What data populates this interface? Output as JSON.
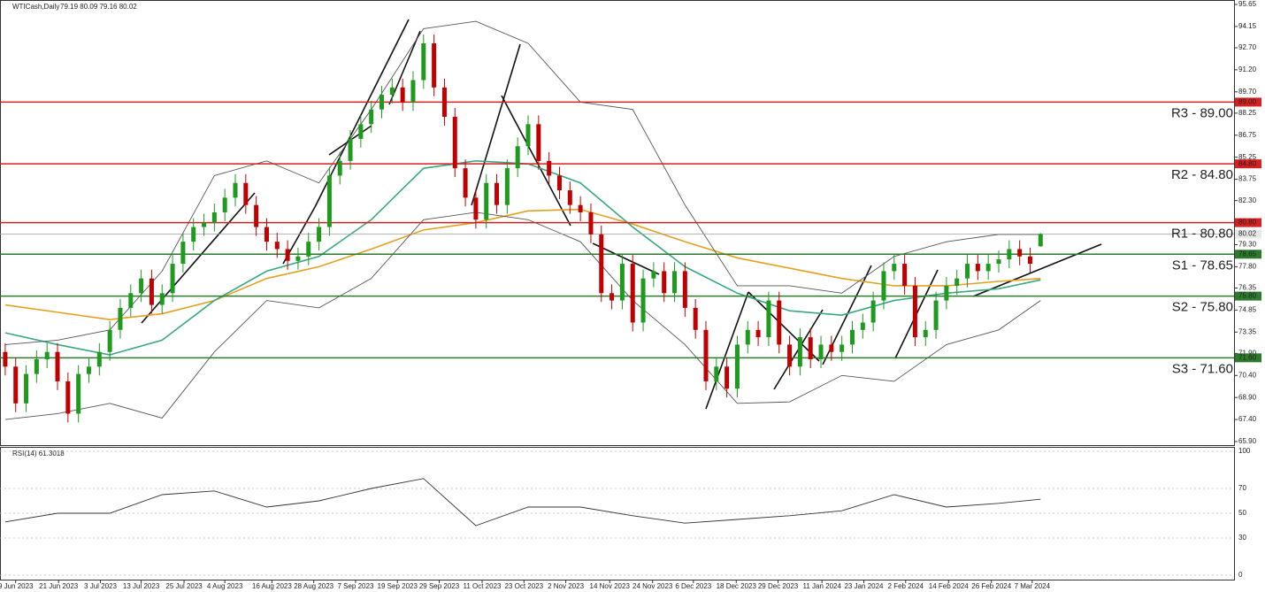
{
  "chart_data": [
    {
      "type": "candlestick",
      "title": "WTICash,Daily",
      "ohlc_label": "79.19 80.09 79.16 80.02",
      "up_color": "#1e9a1e",
      "down_color": "#c00000",
      "open": [
        72.0,
        71.0,
        68.5,
        70.5,
        71.5,
        72.0,
        70.0,
        67.8,
        70.5,
        71.0,
        72.0,
        73.5,
        75.0,
        76.0,
        77.0,
        75.2,
        76.0,
        78.0,
        79.5,
        80.5,
        80.8,
        81.5,
        82.5,
        83.5,
        82.0,
        80.5,
        79.5,
        79.0,
        78.2,
        78.5,
        79.5,
        80.5,
        84.0,
        85.0,
        86.5,
        87.5,
        88.5,
        89.5,
        90.0,
        89.0,
        90.5,
        93.0,
        90.0,
        88.0,
        84.5,
        82.5,
        81.0,
        83.5,
        82.0,
        84.5,
        86.0,
        87.5,
        85.0,
        84.0,
        83.0,
        82.0,
        81.5,
        80.0,
        76.0,
        75.5,
        78.0,
        74.0,
        77.0,
        77.5,
        76.0,
        77.5,
        75.0,
        73.5,
        70.0,
        71.0,
        69.5,
        72.5,
        73.5,
        73.0,
        75.5,
        72.5,
        71.0,
        73.0,
        71.5,
        72.5,
        72.0,
        72.5,
        73.5,
        74.0,
        75.5,
        77.5,
        78.0,
        76.5,
        73.0,
        73.5,
        75.5,
        76.5,
        77.0,
        78.0,
        77.5,
        78.0,
        78.3,
        79.0,
        78.5,
        79.19
      ],
      "high": [
        72.6,
        71.6,
        71.1,
        72.1,
        72.6,
        72.6,
        70.6,
        71.1,
        71.6,
        72.6,
        74.1,
        75.6,
        76.6,
        77.6,
        77.6,
        76.6,
        78.6,
        80.1,
        81.1,
        81.4,
        82.1,
        83.1,
        84.1,
        84.1,
        82.6,
        81.1,
        80.1,
        79.6,
        79.1,
        80.1,
        81.1,
        84.6,
        85.6,
        87.1,
        88.1,
        89.1,
        90.1,
        90.6,
        90.6,
        91.1,
        93.6,
        93.6,
        90.6,
        88.6,
        85.1,
        83.1,
        84.1,
        84.1,
        85.1,
        86.6,
        88.1,
        88.1,
        85.6,
        84.6,
        83.6,
        82.6,
        82.1,
        80.6,
        76.6,
        78.6,
        78.6,
        77.6,
        78.1,
        78.1,
        78.1,
        78.1,
        75.6,
        74.1,
        71.6,
        71.6,
        73.1,
        74.1,
        74.1,
        76.1,
        76.1,
        73.1,
        73.6,
        73.6,
        73.1,
        73.1,
        73.1,
        74.1,
        74.6,
        76.1,
        78.1,
        78.6,
        78.6,
        77.1,
        74.1,
        76.1,
        77.1,
        77.6,
        78.6,
        78.6,
        78.6,
        78.9,
        79.6,
        79.6,
        79.1,
        80.09
      ],
      "low": [
        70.4,
        67.9,
        67.9,
        69.9,
        70.9,
        69.4,
        67.2,
        67.2,
        69.9,
        70.4,
        71.4,
        72.9,
        74.4,
        75.4,
        74.6,
        74.6,
        75.4,
        77.4,
        78.9,
        79.9,
        80.2,
        80.9,
        81.9,
        81.4,
        79.9,
        78.9,
        78.4,
        77.6,
        77.6,
        77.9,
        78.9,
        79.9,
        83.4,
        84.4,
        85.9,
        86.9,
        87.9,
        88.9,
        88.4,
        88.4,
        89.9,
        89.4,
        87.4,
        83.9,
        81.9,
        80.4,
        80.4,
        81.4,
        81.4,
        83.9,
        85.4,
        84.4,
        83.4,
        82.4,
        81.4,
        80.9,
        79.4,
        75.4,
        74.9,
        74.9,
        73.4,
        73.4,
        76.4,
        75.4,
        75.4,
        74.4,
        72.9,
        69.4,
        69.4,
        68.9,
        68.9,
        71.9,
        72.4,
        72.4,
        71.9,
        70.4,
        70.4,
        70.9,
        70.9,
        71.4,
        71.4,
        71.9,
        72.9,
        73.4,
        74.9,
        76.9,
        75.9,
        72.4,
        72.4,
        72.9,
        74.9,
        75.9,
        76.4,
        76.9,
        76.9,
        77.4,
        77.7,
        77.9,
        77.4,
        79.16
      ],
      "close": [
        71.0,
        68.5,
        70.5,
        71.5,
        72.0,
        70.0,
        67.8,
        70.5,
        71.0,
        72.0,
        73.5,
        75.0,
        76.0,
        77.0,
        75.2,
        76.0,
        78.0,
        79.5,
        80.5,
        80.8,
        81.5,
        82.5,
        83.5,
        82.0,
        80.5,
        79.5,
        79.0,
        78.2,
        78.5,
        79.5,
        80.5,
        84.0,
        85.0,
        86.5,
        87.5,
        88.5,
        89.5,
        90.0,
        89.0,
        90.5,
        93.0,
        90.0,
        88.0,
        84.5,
        82.5,
        81.0,
        83.5,
        82.0,
        84.5,
        86.0,
        87.5,
        85.0,
        84.0,
        83.0,
        82.0,
        81.5,
        80.0,
        76.0,
        75.5,
        78.0,
        74.0,
        77.0,
        77.5,
        76.0,
        77.5,
        75.0,
        73.5,
        70.0,
        71.0,
        69.5,
        72.5,
        73.5,
        73.0,
        75.5,
        72.5,
        71.0,
        73.0,
        71.5,
        72.5,
        72.0,
        72.5,
        73.5,
        74.0,
        75.5,
        77.5,
        78.0,
        76.5,
        73.0,
        73.5,
        75.5,
        76.5,
        77.0,
        78.0,
        77.5,
        78.0,
        78.3,
        79.0,
        78.5,
        78.0,
        80.02
      ],
      "ylim": [
        65.9,
        95.65
      ],
      "yticks": [
        95.65,
        94.15,
        {
          "value": 92.7,
          "label": "92.70"
        },
        {
          "value": 91.2,
          "label": "91.20"
        },
        {
          "value": 89.7,
          "label": "89.70"
        },
        88.25,
        86.75,
        85.25,
        83.75,
        {
          "value": 82.3,
          "label": "82.30"
        },
        {
          "value": 80.8,
          "label": "80.80"
        },
        {
          "value": 79.3,
          "label": "79.30"
        },
        {
          "value": 77.8,
          "label": "77.80"
        },
        76.35,
        74.85,
        73.35,
        {
          "value": 71.9,
          "label": "71.90"
        },
        {
          "value": 70.4,
          "label": "70.40"
        },
        {
          "value": 68.9,
          "label": "68.90"
        },
        {
          "value": 67.4,
          "label": "67.40"
        },
        {
          "value": 65.9,
          "label": "65.90"
        }
      ],
      "xlim": [
        0,
        118
      ],
      "xticks": [
        {
          "value": 1.5,
          "label": "9 Jun 2023"
        },
        {
          "value": 5.6,
          "label": "21 Jun 2023"
        },
        {
          "value": 9.6,
          "label": "3 Jul 2023"
        },
        {
          "value": 13.5,
          "label": "13 Jul 2023"
        },
        {
          "value": 17.6,
          "label": "25 Jul 2023"
        },
        {
          "value": 21.5,
          "label": "4 Aug 2023"
        },
        {
          "value": 26,
          "label": "16 Aug 2023"
        },
        {
          "value": 30,
          "label": "28 Aug 2023"
        },
        {
          "value": 34,
          "label": "7 Sep 2023"
        },
        {
          "value": 38,
          "label": "19 Sep 2023"
        },
        {
          "value": 42,
          "label": "29 Sep 2023"
        },
        {
          "value": 46.1,
          "label": "11 Oct 2023"
        },
        {
          "value": 50.1,
          "label": "23 Oct 2023"
        },
        {
          "value": 54.1,
          "label": "2 Nov 2023"
        },
        {
          "value": 58.3,
          "label": "14 Nov 2023"
        },
        {
          "value": 62.4,
          "label": "24 Nov 2023"
        },
        {
          "value": 66.3,
          "label": "6 Dec 2023"
        },
        {
          "value": 70.4,
          "label": "18 Dec 2023"
        },
        {
          "value": 74.4,
          "label": "29 Dec 2023"
        },
        {
          "value": 78.6,
          "label": "11 Jan 2024"
        },
        {
          "value": 82.6,
          "label": "23 Jan 2024"
        },
        {
          "value": 86.6,
          "label": "2 Feb 2024"
        },
        {
          "value": 90.7,
          "label": "14 Feb 2024"
        },
        {
          "value": 94.8,
          "label": "26 Feb 2024"
        },
        {
          "value": 98.7,
          "label": "7 Mar 2024"
        }
      ],
      "overlay_x": [
        0,
        5,
        10,
        15,
        20,
        25,
        30,
        35,
        40,
        45,
        50,
        55,
        60,
        65,
        70,
        75,
        80,
        85,
        90,
        95,
        99
      ],
      "overlays": [
        {
          "color": "#e6a020",
          "values": [
            75.2,
            74.7,
            74.2,
            74.6,
            75.5,
            77.0,
            77.8,
            79.0,
            80.3,
            80.8,
            81.6,
            81.7,
            80.7,
            79.5,
            78.4,
            77.7,
            77.0,
            76.5,
            76.5,
            76.8,
            77.0
          ]
        },
        {
          "color": "#3aa882",
          "values": [
            73.3,
            72.5,
            71.8,
            72.8,
            75.5,
            77.5,
            78.5,
            81.0,
            84.5,
            85.0,
            84.8,
            83.5,
            80.5,
            77.8,
            76.0,
            74.8,
            74.5,
            75.5,
            76.0,
            76.3,
            76.9
          ]
        },
        {
          "color": "#555555",
          "values": [
            72.5,
            72.8,
            73.5,
            77.5,
            84.0,
            85.0,
            83.5,
            88.5,
            94.0,
            94.5,
            93.0,
            89.0,
            88.5,
            82.0,
            76.5,
            76.5,
            76.0,
            78.5,
            79.5,
            80.0,
            80.0
          ]
        },
        {
          "color": "#555555",
          "values": [
            67.4,
            67.8,
            68.5,
            67.5,
            72.0,
            75.5,
            75.0,
            77.0,
            81.0,
            81.5,
            81.0,
            79.5,
            75.5,
            72.5,
            68.5,
            68.6,
            70.4,
            70.0,
            72.5,
            73.5,
            75.5
          ]
        }
      ],
      "levels": [
        {
          "label": "R3 - 89.00",
          "value": 89,
          "tag": "89.00",
          "color": "#d42020",
          "text_color": "#b01818"
        },
        {
          "label": "R2 - 84.80",
          "value": 84.8,
          "tag": "84.80",
          "color": "#d42020",
          "text_color": "#b01818"
        },
        {
          "label": "R1 - 80.80",
          "value": 80.8,
          "tag": "80.80",
          "color": "#d42020",
          "text_color": "#b01818"
        },
        {
          "label": "S1 - 78.65",
          "value": 78.65,
          "tag": "78.65",
          "color": "#2d7a2d",
          "text_color": "#2d6e2d"
        },
        {
          "label": "S2 - 75.80",
          "value": 75.8,
          "tag": "75.80",
          "color": "#2d7a2d",
          "text_color": "#2d6e2d"
        },
        {
          "label": "S3 - 71.60",
          "value": 71.6,
          "tag": "71.60",
          "color": "#2d7a2d",
          "text_color": "#2d6e2d"
        }
      ],
      "last_price": {
        "value": 80.02,
        "label": "80.02",
        "color": "#a0a0a0"
      }
    },
    {
      "type": "line",
      "title": "RSI(14) 61.3018",
      "color": "#333333",
      "x": [
        0,
        5,
        10,
        15,
        20,
        25,
        30,
        35,
        40,
        45,
        50,
        55,
        60,
        65,
        70,
        75,
        80,
        85,
        90,
        95,
        99
      ],
      "values": [
        43,
        50,
        50,
        65,
        68,
        55,
        60,
        70,
        78,
        40,
        55,
        55,
        48,
        42,
        45,
        48,
        52,
        65,
        55,
        58,
        61.3018
      ],
      "ylim": [
        0,
        100
      ],
      "yticks": [
        0,
        30,
        50,
        70,
        100
      ]
    }
  ]
}
